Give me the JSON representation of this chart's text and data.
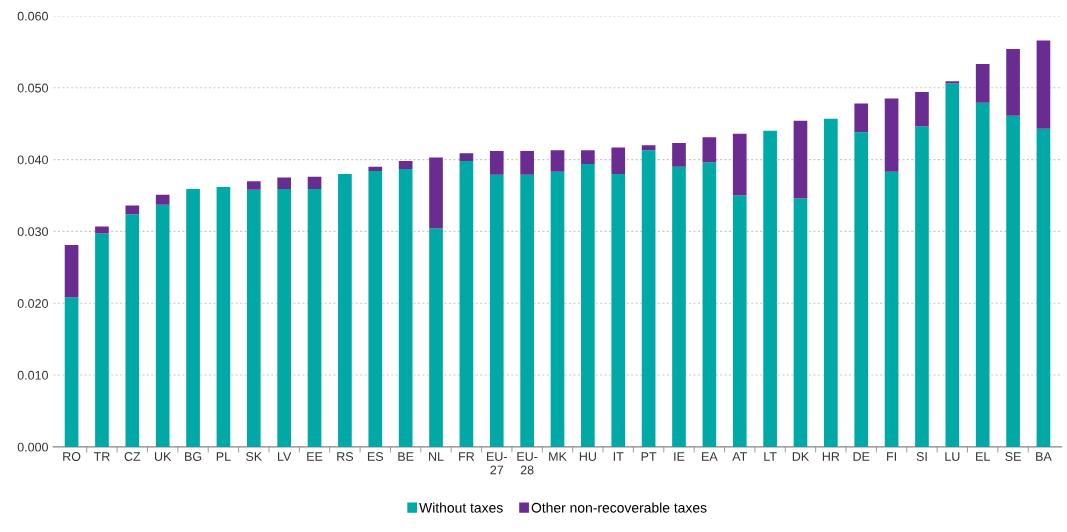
{
  "chart_data": {
    "type": "bar",
    "stacked": true,
    "categories": [
      "RO",
      "TR",
      "CZ",
      "UK",
      "BG",
      "PL",
      "SK",
      "LV",
      "EE",
      "RS",
      "ES",
      "BE",
      "NL",
      "FR",
      "EU-\n27",
      "EU-\n28",
      "MK",
      "HU",
      "IT",
      "PT",
      "IE",
      "EA",
      "AT",
      "LT",
      "DK",
      "HR",
      "DE",
      "FI",
      "SI",
      "LU",
      "EL",
      "SE",
      "BA"
    ],
    "series": [
      {
        "name": "Without taxes",
        "color": "#00a9a5",
        "values": [
          0.0208,
          0.0297,
          0.0324,
          0.0337,
          0.0359,
          0.0362,
          0.0358,
          0.0359,
          0.0359,
          0.038,
          0.0384,
          0.0387,
          0.0304,
          0.0398,
          0.0379,
          0.0379,
          0.0383,
          0.0394,
          0.038,
          0.0413,
          0.039,
          0.0396,
          0.035,
          0.044,
          0.0346,
          0.0457,
          0.0438,
          0.0383,
          0.0446,
          0.0506,
          0.0479,
          0.0461,
          0.0443
        ]
      },
      {
        "name": "Other non-recoverable taxes",
        "color": "#6b2c91",
        "values": [
          0.0073,
          0.001,
          0.0012,
          0.0014,
          0,
          0,
          0.0012,
          0.0016,
          0.0017,
          0,
          0.0006,
          0.0011,
          0.0099,
          0.0011,
          0.0033,
          0.0033,
          0.003,
          0.0019,
          0.0037,
          0.0007,
          0.0033,
          0.0035,
          0.0086,
          0,
          0.0108,
          0,
          0.004,
          0.0102,
          0.0048,
          0.0003,
          0.0054,
          0.0093,
          0.0123
        ]
      }
    ],
    "ylim": [
      0,
      0.06
    ],
    "yticks": [
      {
        "value": 0,
        "label": "0.000"
      },
      {
        "value": 0.01,
        "label": "0.010"
      },
      {
        "value": 0.02,
        "label": "0.020"
      },
      {
        "value": 0.03,
        "label": "0.030"
      },
      {
        "value": 0.04,
        "label": "0.040"
      },
      {
        "value": 0.05,
        "label": "0.050"
      },
      {
        "value": 0.06,
        "label": "0.060"
      }
    ],
    "grid": "y",
    "legend": "bottom"
  }
}
